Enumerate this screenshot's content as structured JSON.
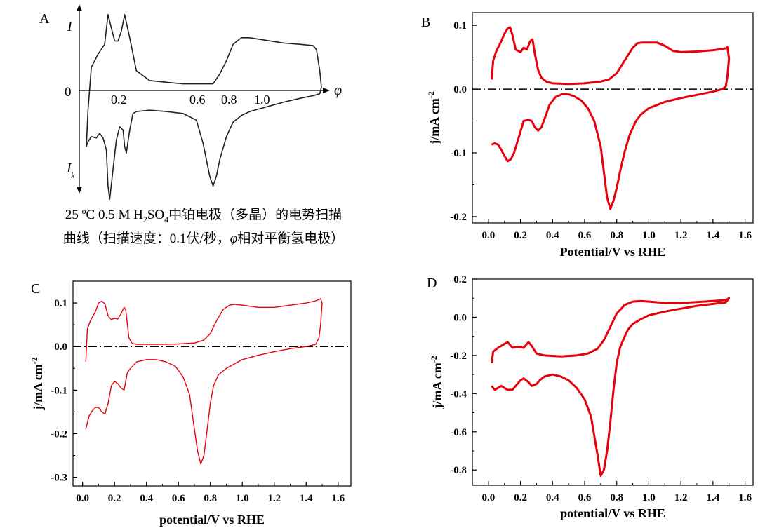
{
  "colors": {
    "curve": "#e8000b",
    "schematic": "#222222",
    "axis": "#000000"
  },
  "panels": {
    "A": {
      "letter": "A",
      "y_top_label": "I",
      "y_bottom_label": "I",
      "y_bottom_sub": "k",
      "zero_label": "0",
      "x_symbol": "φ",
      "x_ticks": [
        "0.2",
        "0.6",
        "0.8",
        "1.0"
      ],
      "caption": {
        "part1": "25 ºC 0.5 M H",
        "sub1": "2",
        "part2": "SO",
        "sub2": "4",
        "part3": "中铂电极（多晶）的电势扫描",
        "line2_a": "曲线（扫描速度：0.1伏/秒，",
        "line2_phi": "φ",
        "line2_b": "相对平衡氢电极）"
      }
    },
    "B": {
      "letter": "B",
      "ylabel_main": "j/mA cm",
      "ylabel_sup": "-2",
      "xlabel": "Potential/V vs RHE"
    },
    "C": {
      "letter": "C",
      "ylabel_main": "j/mA cm",
      "ylabel_sup": "-2",
      "xlabel": "potential/V vs RHE"
    },
    "D": {
      "letter": "D",
      "ylabel_main": "j/mA cm",
      "ylabel_sup": "-2",
      "xlabel": "potential/V vs RHE"
    }
  },
  "chart_data": [
    {
      "panel": "A",
      "type": "line",
      "xlabel": "φ",
      "x_tick_labels": [
        "0.2",
        "0.6",
        "0.8",
        "1.0"
      ],
      "y_labels": [
        "I",
        "0",
        "I_k"
      ],
      "series": [
        {
          "x": [
            0.02,
            0.03,
            0.05,
            0.09,
            0.13,
            0.15,
            0.17,
            0.19,
            0.21,
            0.23,
            0.25,
            0.28,
            0.32,
            0.4,
            0.6,
            0.78,
            0.82,
            0.86,
            0.9,
            0.95,
            1.0,
            1.05,
            1.1,
            1.15,
            1.2,
            1.3,
            1.38,
            1.4,
            1.42,
            1.43,
            1.42,
            1.38,
            1.3,
            1.2,
            1.1,
            1.0,
            0.95,
            0.9,
            0.86,
            0.82,
            0.8,
            0.78,
            0.76,
            0.72,
            0.68,
            0.6,
            0.5,
            0.4,
            0.32,
            0.3,
            0.28,
            0.26,
            0.25,
            0.24,
            0.22,
            0.2,
            0.18,
            0.16,
            0.15,
            0.14,
            0.12,
            0.1,
            0.08,
            0.05,
            0.03,
            0.02
          ],
          "y": [
            -0.85,
            -0.3,
            0.35,
            0.55,
            0.7,
            1.15,
            0.95,
            0.75,
            0.75,
            0.9,
            1.15,
            0.8,
            0.3,
            0.15,
            0.1,
            0.1,
            0.25,
            0.45,
            0.7,
            0.8,
            0.8,
            0.78,
            0.76,
            0.74,
            0.72,
            0.7,
            0.68,
            0.62,
            0.3,
            0.05,
            -0.05,
            -0.08,
            -0.12,
            -0.18,
            -0.25,
            -0.32,
            -0.38,
            -0.48,
            -0.7,
            -1.05,
            -1.3,
            -1.45,
            -1.3,
            -0.8,
            -0.45,
            -0.35,
            -0.32,
            -0.3,
            -0.32,
            -0.35,
            -0.6,
            -0.95,
            -0.85,
            -0.6,
            -0.55,
            -0.75,
            -1.2,
            -1.65,
            -1.45,
            -0.9,
            -0.72,
            -0.65,
            -0.72,
            -0.7,
            -0.78,
            -0.85
          ]
        }
      ]
    },
    {
      "panel": "B",
      "type": "line",
      "xlabel": "Potential/V vs RHE",
      "ylabel": "j/mA cm-2",
      "xlim": [
        -0.1,
        1.65
      ],
      "ylim": [
        -0.21,
        0.12
      ],
      "x_ticks": [
        0.0,
        0.2,
        0.4,
        0.6,
        0.8,
        1.0,
        1.2,
        1.4,
        1.6
      ],
      "y_ticks": [
        0.1,
        0.0,
        -0.1,
        -0.2
      ],
      "baseline": 0.0,
      "series": [
        {
          "x": [
            0.02,
            0.03,
            0.05,
            0.08,
            0.1,
            0.12,
            0.135,
            0.15,
            0.17,
            0.2,
            0.22,
            0.24,
            0.26,
            0.275,
            0.29,
            0.31,
            0.33,
            0.36,
            0.4,
            0.5,
            0.6,
            0.7,
            0.75,
            0.8,
            0.85,
            0.9,
            0.93,
            0.96,
            1.0,
            1.05,
            1.1,
            1.15,
            1.2,
            1.3,
            1.4,
            1.46,
            1.48,
            1.49,
            1.5,
            1.49,
            1.48,
            1.46,
            1.4,
            1.3,
            1.2,
            1.1,
            1.0,
            0.95,
            0.92,
            0.88,
            0.85,
            0.82,
            0.8,
            0.78,
            0.76,
            0.74,
            0.72,
            0.7,
            0.66,
            0.62,
            0.58,
            0.54,
            0.5,
            0.46,
            0.42,
            0.38,
            0.36,
            0.33,
            0.31,
            0.29,
            0.27,
            0.25,
            0.22,
            0.19,
            0.16,
            0.14,
            0.12,
            0.1,
            0.08,
            0.06,
            0.04,
            0.02
          ],
          "y": [
            0.015,
            0.045,
            0.06,
            0.075,
            0.087,
            0.095,
            0.097,
            0.085,
            0.062,
            0.058,
            0.065,
            0.062,
            0.075,
            0.078,
            0.055,
            0.03,
            0.018,
            0.012,
            0.009,
            0.008,
            0.009,
            0.012,
            0.015,
            0.025,
            0.045,
            0.065,
            0.072,
            0.073,
            0.073,
            0.073,
            0.068,
            0.06,
            0.058,
            0.059,
            0.061,
            0.063,
            0.064,
            0.066,
            0.048,
            0.02,
            0.004,
            -0.0,
            -0.004,
            -0.009,
            -0.014,
            -0.02,
            -0.03,
            -0.04,
            -0.05,
            -0.072,
            -0.098,
            -0.13,
            -0.155,
            -0.175,
            -0.188,
            -0.17,
            -0.13,
            -0.09,
            -0.05,
            -0.03,
            -0.018,
            -0.012,
            -0.008,
            -0.008,
            -0.012,
            -0.025,
            -0.04,
            -0.06,
            -0.065,
            -0.06,
            -0.05,
            -0.048,
            -0.05,
            -0.075,
            -0.1,
            -0.11,
            -0.113,
            -0.105,
            -0.095,
            -0.087,
            -0.085,
            -0.087
          ]
        }
      ]
    },
    {
      "panel": "C",
      "type": "line",
      "xlabel": "potential/V vs RHE",
      "ylabel": "j/mA cm-2",
      "xlim": [
        -0.06,
        1.68
      ],
      "ylim": [
        -0.32,
        0.15
      ],
      "x_ticks": [
        0.0,
        0.2,
        0.4,
        0.6,
        0.8,
        1.0,
        1.2,
        1.4,
        1.6
      ],
      "y_ticks": [
        0.1,
        0.0,
        -0.1,
        -0.2,
        -0.3
      ],
      "baseline": 0.0,
      "series": [
        {
          "x": [
            0.02,
            0.03,
            0.05,
            0.08,
            0.1,
            0.12,
            0.14,
            0.16,
            0.18,
            0.2,
            0.22,
            0.24,
            0.26,
            0.27,
            0.29,
            0.31,
            0.34,
            0.4,
            0.5,
            0.6,
            0.7,
            0.76,
            0.8,
            0.84,
            0.88,
            0.92,
            0.95,
            1.0,
            1.1,
            1.2,
            1.3,
            1.4,
            1.46,
            1.48,
            1.49,
            1.5,
            1.49,
            1.48,
            1.46,
            1.4,
            1.3,
            1.2,
            1.1,
            1.0,
            0.95,
            0.9,
            0.85,
            0.82,
            0.8,
            0.78,
            0.76,
            0.74,
            0.72,
            0.7,
            0.67,
            0.63,
            0.58,
            0.52,
            0.46,
            0.4,
            0.34,
            0.3,
            0.28,
            0.26,
            0.24,
            0.22,
            0.2,
            0.18,
            0.16,
            0.14,
            0.12,
            0.1,
            0.08,
            0.06,
            0.04,
            0.02
          ],
          "y": [
            -0.035,
            0.04,
            0.06,
            0.08,
            0.1,
            0.104,
            0.098,
            0.07,
            0.062,
            0.065,
            0.063,
            0.075,
            0.09,
            0.085,
            0.02,
            0.007,
            0.005,
            0.005,
            0.005,
            0.006,
            0.008,
            0.015,
            0.03,
            0.06,
            0.085,
            0.095,
            0.097,
            0.095,
            0.09,
            0.09,
            0.095,
            0.1,
            0.105,
            0.108,
            0.11,
            0.1,
            0.05,
            0.02,
            0.005,
            -0.0,
            -0.005,
            -0.012,
            -0.02,
            -0.03,
            -0.04,
            -0.05,
            -0.065,
            -0.09,
            -0.13,
            -0.19,
            -0.25,
            -0.27,
            -0.24,
            -0.19,
            -0.11,
            -0.07,
            -0.045,
            -0.035,
            -0.03,
            -0.03,
            -0.035,
            -0.05,
            -0.06,
            -0.1,
            -0.095,
            -0.085,
            -0.08,
            -0.09,
            -0.13,
            -0.155,
            -0.15,
            -0.14,
            -0.14,
            -0.148,
            -0.16,
            -0.19
          ]
        }
      ]
    },
    {
      "panel": "D",
      "type": "line",
      "xlabel": "potential/V vs RHE",
      "ylabel": "j/mA cm-2",
      "xlim": [
        -0.1,
        1.65
      ],
      "ylim": [
        -0.88,
        0.2
      ],
      "x_ticks": [
        0.0,
        0.2,
        0.4,
        0.6,
        0.8,
        1.0,
        1.2,
        1.4,
        1.6
      ],
      "y_ticks": [
        0.2,
        0.0,
        -0.2,
        -0.4,
        -0.6,
        -0.8
      ],
      "series": [
        {
          "x": [
            0.02,
            0.03,
            0.06,
            0.1,
            0.12,
            0.15,
            0.18,
            0.22,
            0.25,
            0.27,
            0.3,
            0.35,
            0.45,
            0.55,
            0.62,
            0.68,
            0.72,
            0.76,
            0.8,
            0.85,
            0.9,
            0.95,
            1.0,
            1.1,
            1.2,
            1.3,
            1.4,
            1.48,
            1.5,
            1.48,
            1.4,
            1.3,
            1.2,
            1.1,
            1.0,
            0.95,
            0.9,
            0.87,
            0.85,
            0.82,
            0.8,
            0.78,
            0.76,
            0.74,
            0.72,
            0.7,
            0.68,
            0.64,
            0.6,
            0.55,
            0.5,
            0.45,
            0.4,
            0.35,
            0.32,
            0.3,
            0.27,
            0.25,
            0.22,
            0.2,
            0.17,
            0.15,
            0.12,
            0.1,
            0.08,
            0.06,
            0.04,
            0.02
          ],
          "y": [
            -0.24,
            -0.18,
            -0.16,
            -0.14,
            -0.13,
            -0.16,
            -0.155,
            -0.16,
            -0.13,
            -0.15,
            -0.19,
            -0.2,
            -0.205,
            -0.2,
            -0.19,
            -0.165,
            -0.12,
            -0.05,
            0.02,
            0.065,
            0.082,
            0.085,
            0.082,
            0.075,
            0.075,
            0.08,
            0.085,
            0.09,
            0.1,
            0.078,
            0.07,
            0.06,
            0.045,
            0.03,
            0.01,
            -0.01,
            -0.035,
            -0.065,
            -0.1,
            -0.16,
            -0.24,
            -0.38,
            -0.55,
            -0.7,
            -0.8,
            -0.83,
            -0.72,
            -0.52,
            -0.43,
            -0.37,
            -0.33,
            -0.31,
            -0.3,
            -0.31,
            -0.33,
            -0.35,
            -0.36,
            -0.34,
            -0.32,
            -0.33,
            -0.36,
            -0.38,
            -0.38,
            -0.37,
            -0.36,
            -0.37,
            -0.38,
            -0.36
          ]
        }
      ]
    }
  ]
}
